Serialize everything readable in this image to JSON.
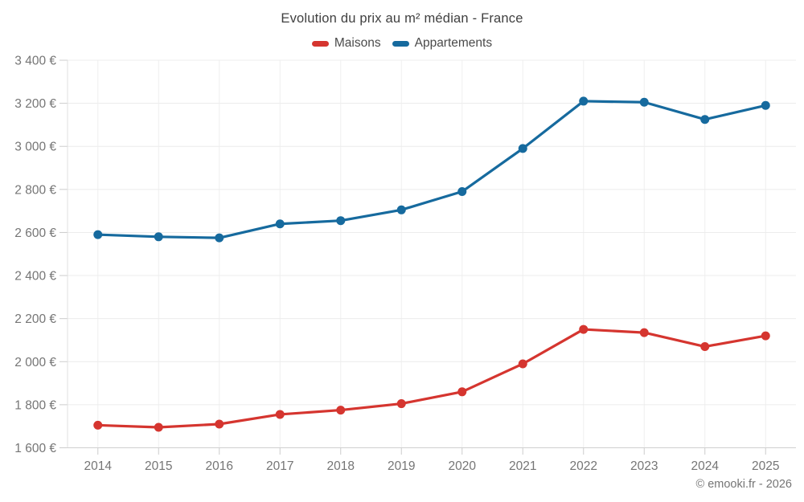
{
  "footer": {
    "credit": "© emooki.fr - 2026"
  },
  "chart_data": {
    "type": "line",
    "title": "Evolution du prix au m² médian - France",
    "categories": [
      "2014",
      "2015",
      "2016",
      "2017",
      "2018",
      "2019",
      "2020",
      "2021",
      "2022",
      "2023",
      "2024",
      "2025"
    ],
    "series": [
      {
        "name": "Maisons",
        "color": "#d5352f",
        "values": [
          1705,
          1695,
          1710,
          1755,
          1775,
          1805,
          1860,
          1990,
          2150,
          2135,
          2070,
          2120
        ]
      },
      {
        "name": "Appartements",
        "color": "#166a9e",
        "values": [
          2590,
          2580,
          2575,
          2640,
          2655,
          2705,
          2790,
          2990,
          3210,
          3205,
          3125,
          3190
        ]
      }
    ],
    "xlabel": "",
    "ylabel": "",
    "ylim": [
      1600,
      3400
    ],
    "y_ticks": [
      1600,
      1800,
      2000,
      2200,
      2400,
      2600,
      2800,
      3000,
      3200,
      3400
    ],
    "y_tick_labels": [
      "1 600 €",
      "1 800 €",
      "2 000 €",
      "2 200 €",
      "2 400 €",
      "2 600 €",
      "2 800 €",
      "3 000 €",
      "3 200 €",
      "3 400 €"
    ],
    "grid": true,
    "legend_position": "top"
  }
}
